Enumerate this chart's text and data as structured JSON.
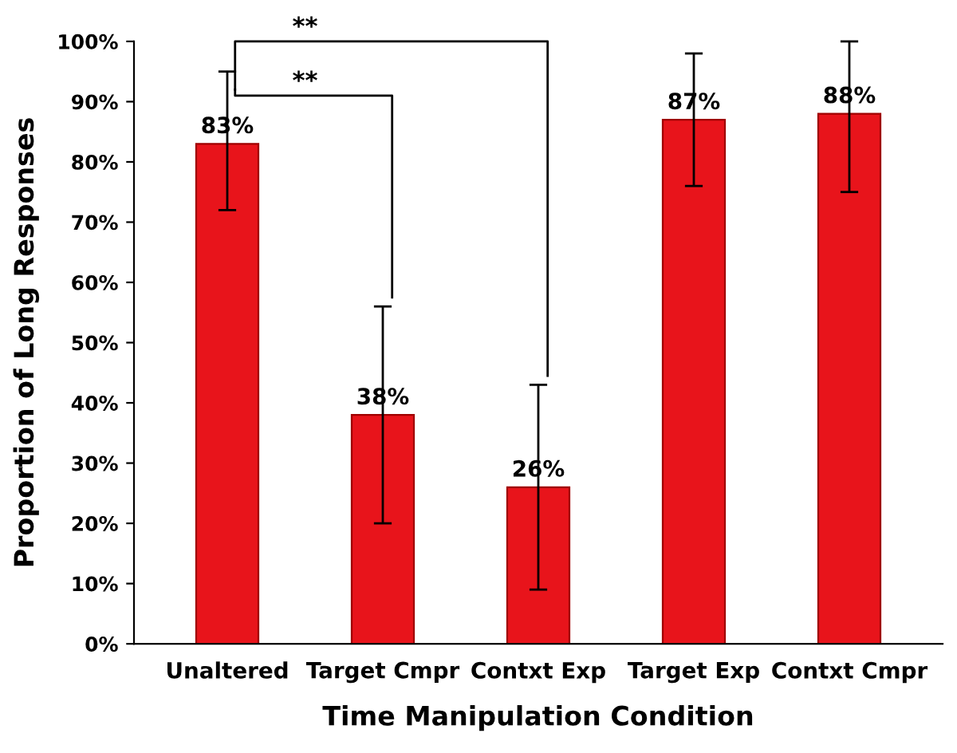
{
  "chart_data": {
    "type": "bar",
    "xlabel": "Time Manipulation Condition",
    "ylabel": "Proportion of Long Responses",
    "categories": [
      "Unaltered",
      "Target Cmpr",
      "Contxt Exp",
      "Target Exp",
      "Contxt Cmpr"
    ],
    "values": [
      83,
      38,
      26,
      87,
      88
    ],
    "value_labels": [
      "83%",
      "38%",
      "26%",
      "87%",
      "88%"
    ],
    "errors": [
      [
        72,
        95
      ],
      [
        20,
        56
      ],
      [
        9,
        43
      ],
      [
        76,
        98
      ],
      [
        75,
        100
      ]
    ],
    "color": "#e8141b",
    "ylim": [
      0,
      100
    ],
    "yticks": [
      {
        "value": 0,
        "label": "0%"
      },
      {
        "value": 10,
        "label": "10%"
      },
      {
        "value": 20,
        "label": "20%"
      },
      {
        "value": 30,
        "label": "30%"
      },
      {
        "value": 40,
        "label": "40%"
      },
      {
        "value": 50,
        "label": "50%"
      },
      {
        "value": 60,
        "label": "60%"
      },
      {
        "value": 70,
        "label": "70%"
      },
      {
        "value": 80,
        "label": "80%"
      },
      {
        "value": 90,
        "label": "90%"
      },
      {
        "value": 100,
        "label": "100%"
      }
    ],
    "grid": false,
    "legend": false,
    "annotations": [
      "**",
      "**"
    ]
  }
}
